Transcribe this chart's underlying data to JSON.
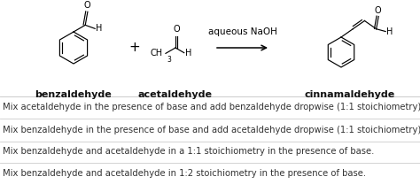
{
  "background_color": "#ffffff",
  "reaction_label": "aqueous NaOH",
  "compound1_name": "benzaldehyde",
  "compound2_name": "acetaldehyde",
  "compound3_name": "cinnamaldehyde",
  "plus_sign": "+",
  "options": [
    "Mix acetaldehyde in the presence of base and add benzaldehyde dropwise (1:1 stoichiometry).",
    "Mix benzaldehyde in the presence of base and add acetaldehyde dropwise (1:1 stoichiometry).",
    "Mix benzaldehyde and acetaldehyde in a 1:1 stoichiometry in the presence of base.",
    "Mix benzaldehyde and acetaldehyde in 1:2 stoichiometry in the presence of base."
  ],
  "divider_color": "#cccccc",
  "text_color": "#333333",
  "label_color": "#111111",
  "fontsize_options": 7.2,
  "fontsize_labels": 8.0,
  "fontsize_reaction": 7.5,
  "fig_width": 4.74,
  "fig_height": 2.17,
  "dpi": 100
}
